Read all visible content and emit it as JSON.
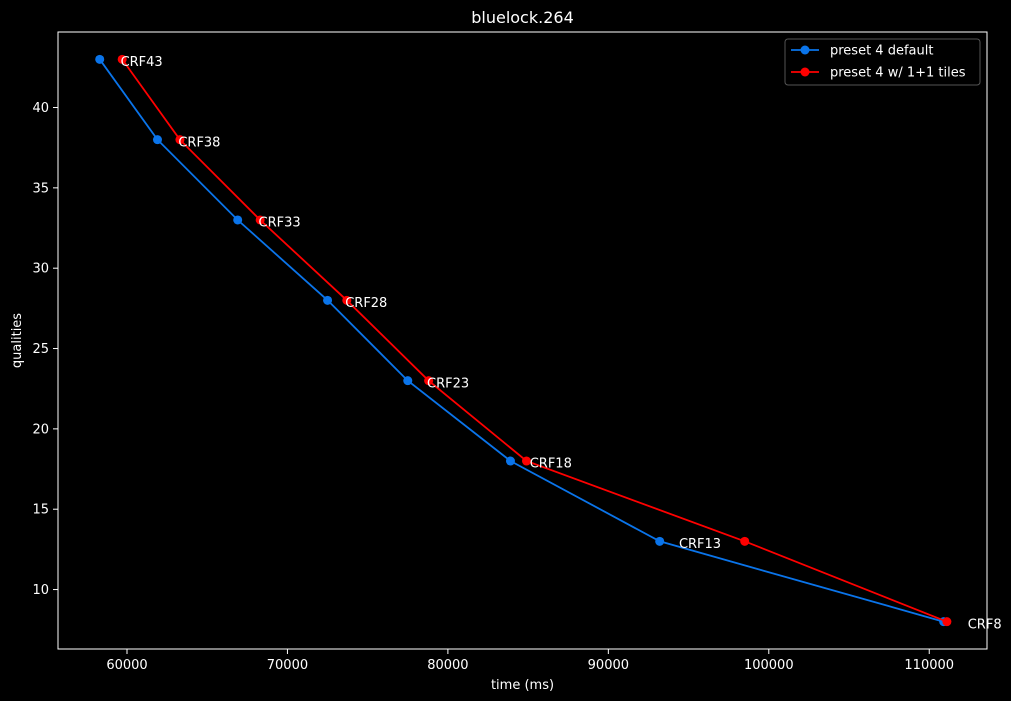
{
  "chart_data": {
    "type": "line",
    "title": "bluelock.264",
    "xlabel": "time (ms)",
    "ylabel": "qualities",
    "xlim": [
      55700,
      113600
    ],
    "ylim": [
      6.3,
      44.7
    ],
    "xticks": [
      60000,
      70000,
      80000,
      90000,
      100000,
      110000
    ],
    "yticks": [
      10,
      15,
      20,
      25,
      30,
      35,
      40
    ],
    "grid": false,
    "legend_position": "top-right",
    "series": [
      {
        "name": "preset 4 default",
        "color": "#0a74ea",
        "marker": "circle",
        "x": [
          58300,
          61900,
          66900,
          72500,
          77500,
          83900,
          93200,
          110900
        ],
        "y": [
          43,
          38,
          33,
          28,
          23,
          18,
          13,
          8
        ]
      },
      {
        "name": "preset 4 w/ 1+1 tiles",
        "color": "#ff0000",
        "marker": "circle",
        "x": [
          59700,
          63300,
          68300,
          73700,
          78800,
          84900,
          98500,
          111100
        ],
        "y": [
          43,
          38,
          33,
          28,
          23,
          18,
          13,
          8
        ]
      }
    ],
    "annotations": [
      {
        "text": "CRF43",
        "x": 59600,
        "y": 42.9
      },
      {
        "text": "CRF38",
        "x": 63200,
        "y": 37.9
      },
      {
        "text": "CRF33",
        "x": 68200,
        "y": 32.9
      },
      {
        "text": "CRF28",
        "x": 73600,
        "y": 27.9
      },
      {
        "text": "CRF23",
        "x": 78700,
        "y": 22.9
      },
      {
        "text": "CRF18",
        "x": 85100,
        "y": 17.9
      },
      {
        "text": "CRF13",
        "x": 94400,
        "y": 12.9
      },
      {
        "text": "CRF8",
        "x": 112400,
        "y": 7.9
      }
    ]
  }
}
